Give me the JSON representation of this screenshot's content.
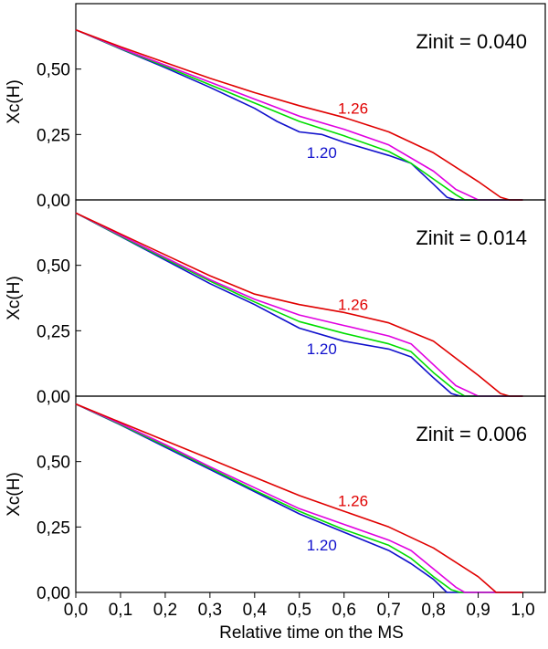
{
  "chart_data": {
    "type": "line",
    "xlabel": "Relative time on the MS",
    "ylabel": "Xc(H)",
    "xlim": [
      0.0,
      1.05
    ],
    "ylim": [
      0.0,
      0.75
    ],
    "x_ticks": [
      "0,0",
      "0,1",
      "0,2",
      "0,3",
      "0,4",
      "0,5",
      "0,6",
      "0,7",
      "0,8",
      "0,9",
      "1,0"
    ],
    "y_ticks": [
      "0,00",
      "0,25",
      "0,50"
    ],
    "colors": {
      "red": "#e00000",
      "magenta": "#e000e0",
      "green": "#00dd00",
      "blue": "#1010cc"
    },
    "panels": [
      {
        "title": "Zinit = 0.040",
        "label_top": "1.26",
        "label_bottom": "1.20",
        "label_top_pos": [
          0.62,
          0.33
        ],
        "label_bottom_pos": [
          0.55,
          0.16
        ],
        "series": [
          {
            "name": "1.26",
            "color": "red",
            "points": [
              [
                0,
                0.65
              ],
              [
                0.1,
                0.585
              ],
              [
                0.2,
                0.525
              ],
              [
                0.3,
                0.465
              ],
              [
                0.4,
                0.41
              ],
              [
                0.5,
                0.36
              ],
              [
                0.6,
                0.315
              ],
              [
                0.7,
                0.26
              ],
              [
                0.8,
                0.18
              ],
              [
                0.9,
                0.07
              ],
              [
                0.95,
                0.01
              ],
              [
                0.97,
                0.0
              ],
              [
                1.0,
                0.0
              ]
            ]
          },
          {
            "name": "mag",
            "color": "magenta",
            "points": [
              [
                0,
                0.65
              ],
              [
                0.1,
                0.58
              ],
              [
                0.2,
                0.515
              ],
              [
                0.3,
                0.45
              ],
              [
                0.4,
                0.385
              ],
              [
                0.5,
                0.32
              ],
              [
                0.6,
                0.27
              ],
              [
                0.7,
                0.21
              ],
              [
                0.8,
                0.11
              ],
              [
                0.85,
                0.04
              ],
              [
                0.9,
                0.0
              ],
              [
                1.0,
                0.0
              ]
            ]
          },
          {
            "name": "green",
            "color": "green",
            "points": [
              [
                0,
                0.65
              ],
              [
                0.1,
                0.578
              ],
              [
                0.2,
                0.51
              ],
              [
                0.3,
                0.44
              ],
              [
                0.4,
                0.37
              ],
              [
                0.5,
                0.3
              ],
              [
                0.6,
                0.245
              ],
              [
                0.7,
                0.185
              ],
              [
                0.75,
                0.14
              ],
              [
                0.8,
                0.08
              ],
              [
                0.85,
                0.02
              ],
              [
                0.87,
                0.0
              ],
              [
                1.0,
                0.0
              ]
            ]
          },
          {
            "name": "1.20",
            "color": "blue",
            "points": [
              [
                0,
                0.65
              ],
              [
                0.1,
                0.577
              ],
              [
                0.2,
                0.505
              ],
              [
                0.3,
                0.43
              ],
              [
                0.4,
                0.35
              ],
              [
                0.45,
                0.3
              ],
              [
                0.5,
                0.26
              ],
              [
                0.55,
                0.25
              ],
              [
                0.6,
                0.22
              ],
              [
                0.7,
                0.17
              ],
              [
                0.75,
                0.14
              ],
              [
                0.8,
                0.06
              ],
              [
                0.83,
                0.01
              ],
              [
                0.85,
                0.0
              ],
              [
                1.0,
                0.0
              ]
            ]
          }
        ]
      },
      {
        "title": "Zinit = 0.014",
        "label_top": "1.26",
        "label_bottom": "1.20",
        "label_top_pos": [
          0.62,
          0.33
        ],
        "label_bottom_pos": [
          0.55,
          0.16
        ],
        "series": [
          {
            "name": "1.26",
            "color": "red",
            "points": [
              [
                0,
                0.7
              ],
              [
                0.1,
                0.62
              ],
              [
                0.2,
                0.54
              ],
              [
                0.3,
                0.46
              ],
              [
                0.4,
                0.39
              ],
              [
                0.5,
                0.35
              ],
              [
                0.6,
                0.32
              ],
              [
                0.7,
                0.28
              ],
              [
                0.8,
                0.21
              ],
              [
                0.9,
                0.08
              ],
              [
                0.95,
                0.01
              ],
              [
                0.97,
                0.0
              ],
              [
                1.0,
                0.0
              ]
            ]
          },
          {
            "name": "mag",
            "color": "magenta",
            "points": [
              [
                0,
                0.7
              ],
              [
                0.1,
                0.615
              ],
              [
                0.2,
                0.53
              ],
              [
                0.3,
                0.445
              ],
              [
                0.4,
                0.37
              ],
              [
                0.5,
                0.31
              ],
              [
                0.6,
                0.27
              ],
              [
                0.7,
                0.23
              ],
              [
                0.75,
                0.2
              ],
              [
                0.8,
                0.12
              ],
              [
                0.85,
                0.04
              ],
              [
                0.9,
                0.0
              ],
              [
                1.0,
                0.0
              ]
            ]
          },
          {
            "name": "green",
            "color": "green",
            "points": [
              [
                0,
                0.7
              ],
              [
                0.1,
                0.612
              ],
              [
                0.2,
                0.525
              ],
              [
                0.3,
                0.44
              ],
              [
                0.4,
                0.36
              ],
              [
                0.5,
                0.285
              ],
              [
                0.6,
                0.24
              ],
              [
                0.7,
                0.2
              ],
              [
                0.75,
                0.17
              ],
              [
                0.8,
                0.09
              ],
              [
                0.85,
                0.02
              ],
              [
                0.87,
                0.0
              ],
              [
                1.0,
                0.0
              ]
            ]
          },
          {
            "name": "1.20",
            "color": "blue",
            "points": [
              [
                0,
                0.7
              ],
              [
                0.1,
                0.61
              ],
              [
                0.2,
                0.52
              ],
              [
                0.3,
                0.43
              ],
              [
                0.4,
                0.35
              ],
              [
                0.5,
                0.26
              ],
              [
                0.6,
                0.21
              ],
              [
                0.7,
                0.18
              ],
              [
                0.75,
                0.15
              ],
              [
                0.8,
                0.07
              ],
              [
                0.84,
                0.01
              ],
              [
                0.86,
                0.0
              ],
              [
                1.0,
                0.0
              ]
            ]
          }
        ]
      },
      {
        "title": "Zinit = 0.006",
        "label_top": "1.26",
        "label_bottom": "1.20",
        "label_top_pos": [
          0.62,
          0.33
        ],
        "label_bottom_pos": [
          0.55,
          0.16
        ],
        "series": [
          {
            "name": "1.26",
            "color": "red",
            "points": [
              [
                0,
                0.72
              ],
              [
                0.1,
                0.65
              ],
              [
                0.2,
                0.58
              ],
              [
                0.3,
                0.51
              ],
              [
                0.4,
                0.44
              ],
              [
                0.5,
                0.37
              ],
              [
                0.6,
                0.31
              ],
              [
                0.7,
                0.25
              ],
              [
                0.8,
                0.17
              ],
              [
                0.9,
                0.06
              ],
              [
                0.94,
                0.0
              ],
              [
                1.0,
                0.0
              ]
            ]
          },
          {
            "name": "mag",
            "color": "magenta",
            "points": [
              [
                0,
                0.72
              ],
              [
                0.1,
                0.645
              ],
              [
                0.2,
                0.565
              ],
              [
                0.3,
                0.48
              ],
              [
                0.4,
                0.4
              ],
              [
                0.5,
                0.32
              ],
              [
                0.6,
                0.26
              ],
              [
                0.7,
                0.2
              ],
              [
                0.75,
                0.16
              ],
              [
                0.8,
                0.09
              ],
              [
                0.85,
                0.02
              ],
              [
                0.87,
                0.0
              ],
              [
                1.0,
                0.0
              ]
            ]
          },
          {
            "name": "green",
            "color": "green",
            "points": [
              [
                0,
                0.72
              ],
              [
                0.1,
                0.642
              ],
              [
                0.2,
                0.56
              ],
              [
                0.3,
                0.475
              ],
              [
                0.4,
                0.39
              ],
              [
                0.5,
                0.31
              ],
              [
                0.6,
                0.24
              ],
              [
                0.7,
                0.18
              ],
              [
                0.75,
                0.13
              ],
              [
                0.8,
                0.06
              ],
              [
                0.84,
                0.01
              ],
              [
                0.86,
                0.0
              ],
              [
                1.0,
                0.0
              ]
            ]
          },
          {
            "name": "1.20",
            "color": "blue",
            "points": [
              [
                0,
                0.72
              ],
              [
                0.1,
                0.64
              ],
              [
                0.2,
                0.555
              ],
              [
                0.3,
                0.47
              ],
              [
                0.4,
                0.385
              ],
              [
                0.5,
                0.3
              ],
              [
                0.6,
                0.23
              ],
              [
                0.7,
                0.16
              ],
              [
                0.75,
                0.11
              ],
              [
                0.8,
                0.05
              ],
              [
                0.83,
                0.0
              ],
              [
                1.0,
                0.0
              ]
            ]
          }
        ]
      }
    ]
  }
}
